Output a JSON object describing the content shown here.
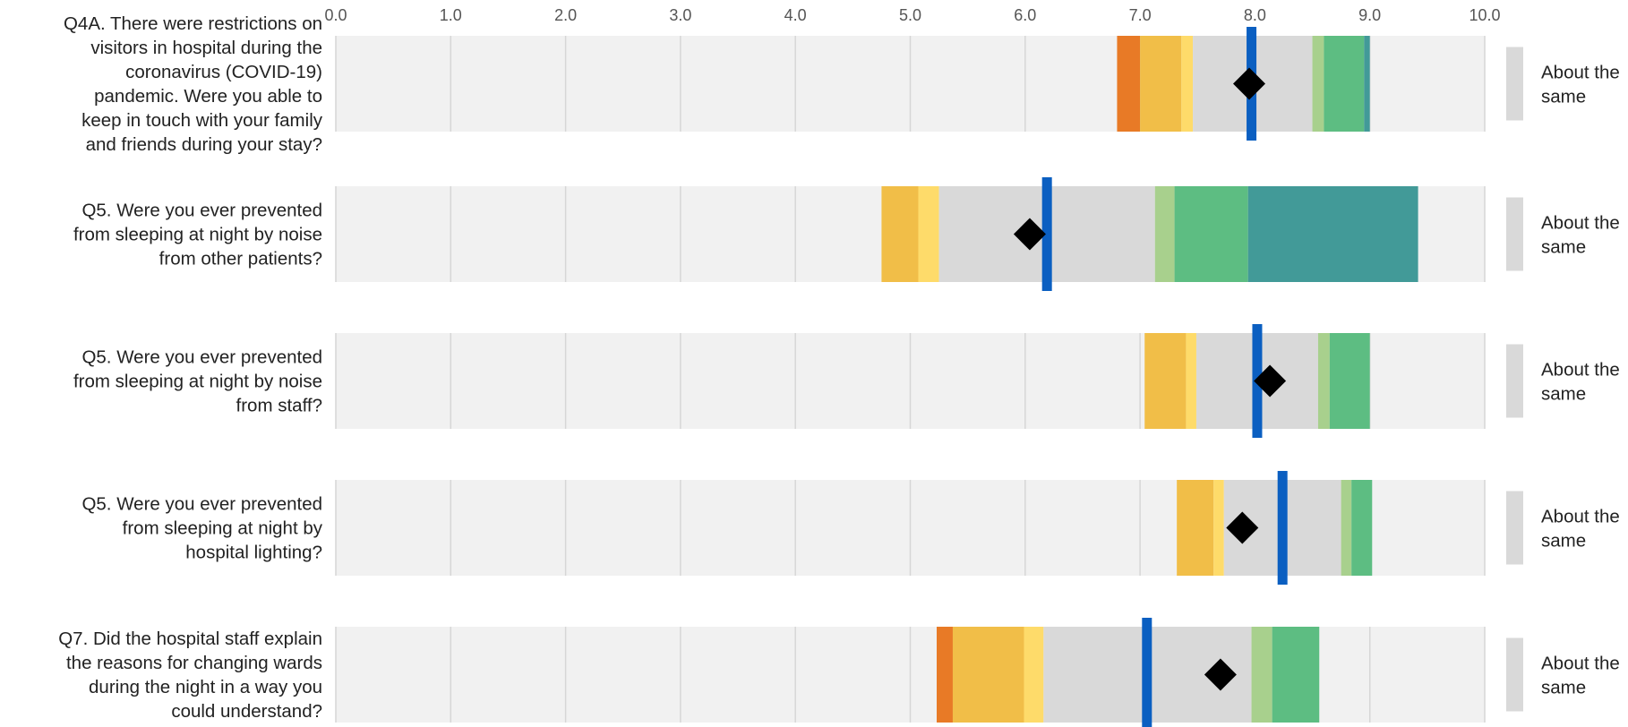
{
  "chart_data": {
    "type": "bar",
    "x_ticks": [
      "0.0",
      "1.0",
      "2.0",
      "3.0",
      "4.0",
      "5.0",
      "6.0",
      "7.0",
      "8.0",
      "9.0",
      "10.0"
    ],
    "xlim": [
      0,
      10
    ],
    "grid": true,
    "band_colors": [
      "#e87a26",
      "#f1be48",
      "#fedb6a",
      "#d9d9d9",
      "#a8d08d",
      "#5dbd82",
      "#429a98"
    ],
    "colors": {
      "background_band": "#f1f1f1",
      "gridline": "#d6d6d6",
      "marker_line": "#0b5fc1",
      "score_marker": "#000000",
      "status_box": "#d9d9d9"
    },
    "questions": [
      {
        "label_lines": [
          "Q4A. There were restrictions on",
          "visitors in hospital during the",
          "coronavirus (COVID-19)",
          "pandemic. Were you able to",
          "keep in touch with your family",
          "and friends during your stay?"
        ],
        "bands": [
          [
            6.8,
            7.0
          ],
          [
            7.0,
            7.36
          ],
          [
            7.36,
            7.46
          ],
          [
            7.46,
            8.5
          ],
          [
            8.5,
            8.6
          ],
          [
            8.6,
            8.95
          ],
          [
            8.95,
            9.0
          ]
        ],
        "line_value": 7.97,
        "score": 7.95,
        "status_lines": [
          "About the",
          "same"
        ]
      },
      {
        "label_lines": [
          "Q5. Were you ever prevented",
          "from sleeping at night by noise",
          "from other patients?"
        ],
        "bands": [
          [
            4.75,
            4.75
          ],
          [
            4.75,
            5.07
          ],
          [
            5.07,
            5.25
          ],
          [
            5.25,
            7.13
          ],
          [
            7.13,
            7.3
          ],
          [
            7.3,
            7.94
          ],
          [
            7.94,
            9.42
          ]
        ],
        "line_value": 6.19,
        "score": 6.04,
        "status_lines": [
          "About the",
          "same"
        ]
      },
      {
        "label_lines": [
          "Q5. Were you ever prevented",
          "from sleeping at night by noise",
          "from staff?"
        ],
        "bands": [
          [
            7.04,
            7.04
          ],
          [
            7.04,
            7.4
          ],
          [
            7.4,
            7.49
          ],
          [
            7.49,
            8.55
          ],
          [
            8.55,
            8.65
          ],
          [
            8.65,
            9.0
          ],
          [
            9.0,
            9.0
          ]
        ],
        "line_value": 8.02,
        "score": 8.13,
        "status_lines": [
          "About the",
          "same"
        ]
      },
      {
        "label_lines": [
          "Q5. Were you ever prevented",
          "from sleeping at night by",
          "hospital lighting?"
        ],
        "bands": [
          [
            7.32,
            7.32
          ],
          [
            7.32,
            7.64
          ],
          [
            7.64,
            7.73
          ],
          [
            7.73,
            8.75
          ],
          [
            8.75,
            8.84
          ],
          [
            8.84,
            9.02
          ],
          [
            9.02,
            9.02
          ]
        ],
        "line_value": 8.24,
        "score": 7.89,
        "status_lines": [
          "About the",
          "same"
        ]
      },
      {
        "label_lines": [
          "Q7. Did the hospital staff explain",
          "the reasons for changing wards",
          "during the night in a way you",
          "could understand?"
        ],
        "bands": [
          [
            5.23,
            5.37
          ],
          [
            5.37,
            5.99
          ],
          [
            5.99,
            6.16
          ],
          [
            6.16,
            7.97
          ],
          [
            7.97,
            8.15
          ],
          [
            8.15,
            8.56
          ],
          [
            8.56,
            8.56
          ]
        ],
        "line_value": 7.06,
        "score": 7.7,
        "status_lines": [
          "About the",
          "same"
        ]
      }
    ]
  }
}
